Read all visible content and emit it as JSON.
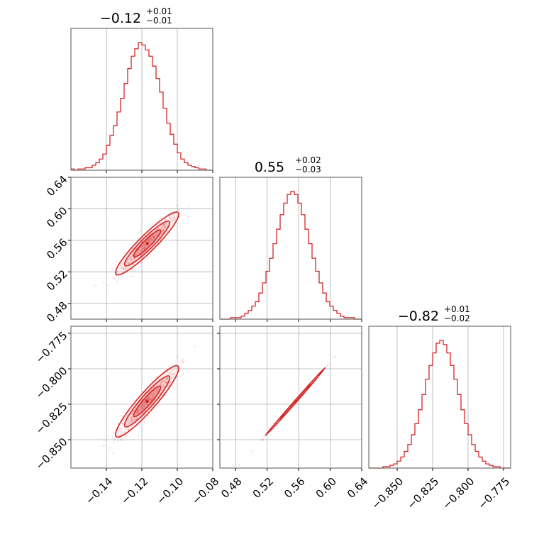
{
  "chart_data": {
    "type": "corner",
    "color": "#d62728",
    "grid": true,
    "parameters": [
      {
        "median": "−0.12",
        "upper": "+0.01",
        "lower": "−0.01",
        "range": [
          -0.16,
          -0.08
        ],
        "ticks": [
          -0.14,
          -0.12,
          -0.1,
          -0.08
        ],
        "tick_labels": [
          "−0.14",
          "−0.12",
          "−0.10",
          "−0.08"
        ],
        "mean": -0.117,
        "sd": 0.0085
      },
      {
        "median": "0.55",
        "upper": "+0.02",
        "lower": "−0.03",
        "range": [
          0.46,
          0.64
        ],
        "ticks": [
          0.48,
          0.52,
          0.56,
          0.6,
          0.64
        ],
        "tick_labels": [
          "0.48",
          "0.52",
          "0.56",
          "0.60",
          "0.64"
        ],
        "mean": 0.556,
        "sd": 0.019
      },
      {
        "median": "−0.82",
        "upper": "+0.01",
        "lower": "−0.02",
        "range": [
          -0.87,
          -0.77
        ],
        "ticks": [
          -0.85,
          -0.825,
          -0.8,
          -0.775
        ],
        "tick_labels": [
          "−0.850",
          "−0.825",
          "−0.800",
          "−0.775"
        ],
        "mean": -0.823,
        "sd": 0.012
      }
    ],
    "histograms": [
      {
        "param": 0,
        "bins": 40,
        "counts": [
          1,
          0,
          1,
          1,
          2,
          2,
          4,
          6,
          9,
          13,
          20,
          28,
          36,
          47,
          58,
          70,
          82,
          92,
          98,
          103,
          101,
          97,
          92,
          84,
          74,
          63,
          50,
          38,
          29,
          21,
          14,
          9,
          6,
          4,
          3,
          2,
          1,
          1,
          0,
          0
        ]
      },
      {
        "param": 1,
        "bins": 40,
        "counts": [
          0,
          0,
          0,
          1,
          1,
          1,
          2,
          4,
          6,
          9,
          12,
          18,
          25,
          33,
          42,
          52,
          62,
          72,
          80,
          86,
          88,
          86,
          80,
          72,
          62,
          52,
          42,
          33,
          25,
          18,
          12,
          9,
          6,
          4,
          2,
          1,
          1,
          1,
          0,
          0
        ]
      },
      {
        "param": 2,
        "bins": 40,
        "counts": [
          0,
          0,
          0,
          0,
          1,
          1,
          2,
          3,
          5,
          8,
          12,
          17,
          24,
          32,
          42,
          53,
          64,
          74,
          83,
          90,
          92,
          89,
          83,
          74,
          64,
          53,
          42,
          32,
          24,
          17,
          12,
          8,
          5,
          3,
          2,
          1,
          1,
          0,
          0,
          0
        ]
      }
    ],
    "pairs": [
      {
        "x": 0,
        "y": 1,
        "correlation": 0.93
      },
      {
        "x": 0,
        "y": 2,
        "correlation": 0.93
      },
      {
        "x": 1,
        "y": 2,
        "correlation": 0.999
      }
    ]
  }
}
